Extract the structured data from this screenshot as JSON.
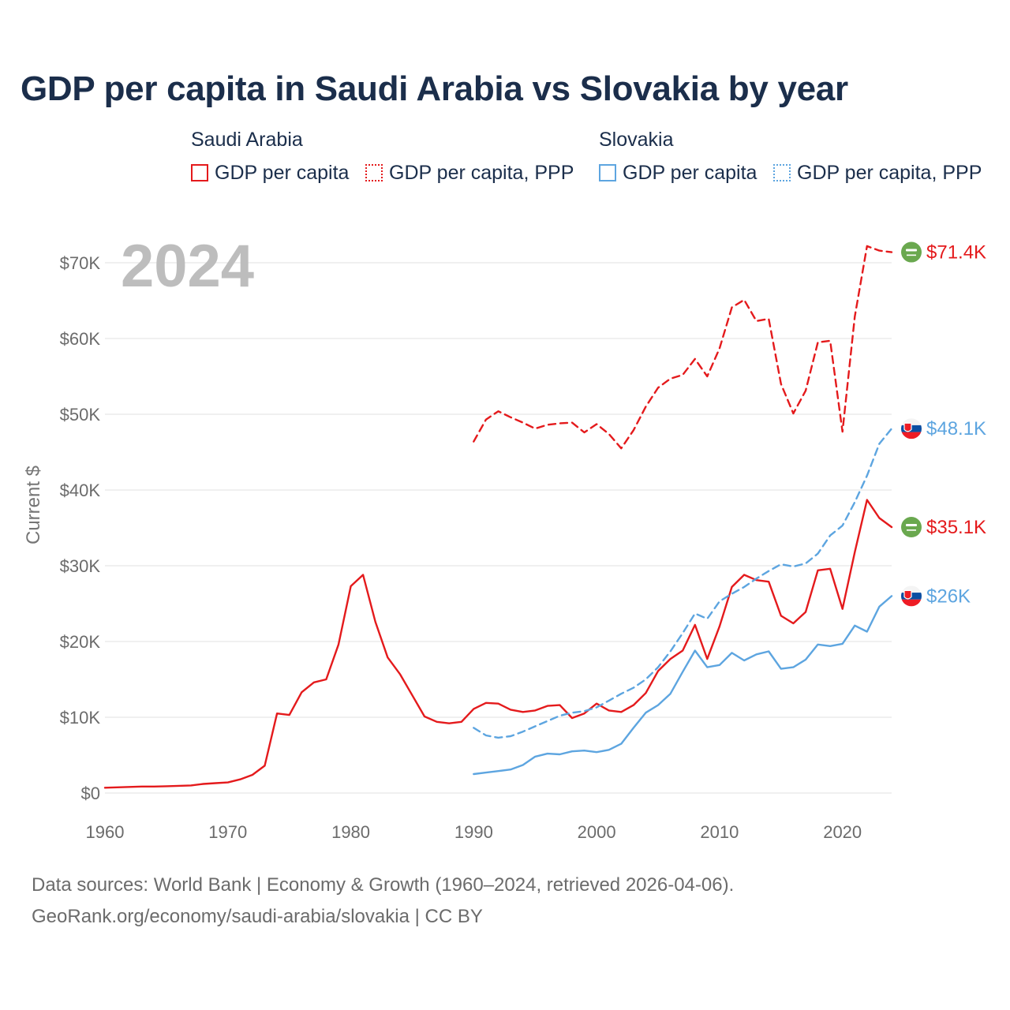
{
  "title": "GDP per capita in Saudi Arabia vs Slovakia by year",
  "legend": {
    "groups": [
      {
        "name": "Saudi Arabia",
        "color": "#e41a1c",
        "items": [
          {
            "label": "GDP per capita",
            "style": "solid"
          },
          {
            "label": "GDP per capita, PPP",
            "style": "dotted"
          }
        ]
      },
      {
        "name": "Slovakia",
        "color": "#5da5e0",
        "items": [
          {
            "label": "GDP per capita",
            "style": "solid"
          },
          {
            "label": "GDP per capita, PPP",
            "style": "dotted"
          }
        ]
      }
    ]
  },
  "footer": {
    "line1": "Data sources: World Bank | Economy & Growth (1960–2024, retrieved 2026-04-06).",
    "line2": "GeoRank.org/economy/saudi-arabia/slovakia | CC BY"
  },
  "chart_data": {
    "type": "line",
    "year_label": "2024",
    "ylabel": "Current $",
    "xlabel": "",
    "xlim": [
      1960,
      2024
    ],
    "ylim": [
      0,
      75000
    ],
    "x_ticks": [
      1960,
      1970,
      1980,
      1990,
      2000,
      2010,
      2020
    ],
    "x_tick_labels": [
      "1960",
      "1970",
      "1980",
      "1990",
      "2000",
      "2010",
      "2020"
    ],
    "y_ticks": [
      0,
      10000,
      20000,
      30000,
      40000,
      50000,
      60000,
      70000
    ],
    "y_tick_labels": [
      "$0",
      "$10K",
      "$20K",
      "$30K",
      "$40K",
      "$50K",
      "$60K",
      "$70K"
    ],
    "grid": true,
    "series": [
      {
        "name": "Saudi Arabia GDP per capita",
        "country": "Saudi Arabia",
        "color": "#e41a1c",
        "dash": "solid",
        "end_label": "$35.1K",
        "flag": "saudi-arabia",
        "x": [
          1960,
          1961,
          1962,
          1963,
          1964,
          1965,
          1966,
          1967,
          1968,
          1969,
          1970,
          1971,
          1972,
          1973,
          1974,
          1975,
          1976,
          1977,
          1978,
          1979,
          1980,
          1981,
          1982,
          1983,
          1984,
          1985,
          1986,
          1987,
          1988,
          1989,
          1990,
          1991,
          1992,
          1993,
          1994,
          1995,
          1996,
          1997,
          1998,
          1999,
          2000,
          2001,
          2002,
          2003,
          2004,
          2005,
          2006,
          2007,
          2008,
          2009,
          2010,
          2011,
          2012,
          2013,
          2014,
          2015,
          2016,
          2017,
          2018,
          2019,
          2020,
          2021,
          2022,
          2023,
          2024
        ],
        "values": [
          700,
          750,
          800,
          850,
          850,
          900,
          950,
          1000,
          1200,
          1300,
          1400,
          1800,
          2400,
          3600,
          10500,
          10300,
          13300,
          14600,
          15000,
          19600,
          27300,
          28800,
          22600,
          17900,
          15700,
          12900,
          10100,
          9400,
          9200,
          9400,
          11100,
          11900,
          11800,
          11000,
          10700,
          10900,
          11500,
          11600,
          9900,
          10500,
          11800,
          10900,
          10700,
          11600,
          13200,
          16100,
          17700,
          18800,
          22200,
          17700,
          22000,
          27200,
          28800,
          28100,
          27900,
          23400,
          22400,
          23900,
          29400,
          29600,
          24300,
          31800,
          38700,
          36300,
          35100
        ]
      },
      {
        "name": "Saudi Arabia GDP per capita, PPP",
        "country": "Saudi Arabia",
        "color": "#e41a1c",
        "dash": "dashed",
        "end_label": "$71.4K",
        "flag": "saudi-arabia",
        "x": [
          1990,
          1991,
          1992,
          1993,
          1994,
          1995,
          1996,
          1997,
          1998,
          1999,
          2000,
          2001,
          2002,
          2003,
          2004,
          2005,
          2006,
          2007,
          2008,
          2009,
          2010,
          2011,
          2012,
          2013,
          2014,
          2015,
          2016,
          2017,
          2018,
          2019,
          2020,
          2021,
          2022,
          2023,
          2024
        ],
        "values": [
          46400,
          49300,
          50400,
          49600,
          48900,
          48100,
          48600,
          48800,
          48900,
          47600,
          48700,
          47400,
          45500,
          47900,
          51000,
          53500,
          54700,
          55200,
          57300,
          55000,
          58700,
          64100,
          65100,
          62300,
          62600,
          54000,
          50100,
          53100,
          59500,
          59700,
          47700,
          62900,
          72200,
          71600,
          71400
        ]
      },
      {
        "name": "Slovakia GDP per capita",
        "country": "Slovakia",
        "color": "#5da5e0",
        "dash": "solid",
        "end_label": "$26K",
        "flag": "slovakia",
        "x": [
          1990,
          1991,
          1992,
          1993,
          1994,
          1995,
          1996,
          1997,
          1998,
          1999,
          2000,
          2001,
          2002,
          2003,
          2004,
          2005,
          2006,
          2007,
          2008,
          2009,
          2010,
          2011,
          2012,
          2013,
          2014,
          2015,
          2016,
          2017,
          2018,
          2019,
          2020,
          2021,
          2022,
          2023,
          2024
        ],
        "values": [
          2500,
          2700,
          2900,
          3100,
          3700,
          4800,
          5200,
          5100,
          5500,
          5600,
          5400,
          5700,
          6500,
          8600,
          10600,
          11600,
          13100,
          16000,
          18800,
          16600,
          16900,
          18500,
          17500,
          18300,
          18700,
          16400,
          16600,
          17600,
          19600,
          19400,
          19700,
          22100,
          21300,
          24600,
          26000
        ]
      },
      {
        "name": "Slovakia GDP per capita, PPP",
        "country": "Slovakia",
        "color": "#5da5e0",
        "dash": "dashed",
        "end_label": "$48.1K",
        "flag": "slovakia",
        "x": [
          1990,
          1991,
          1992,
          1993,
          1994,
          1995,
          1996,
          1997,
          1998,
          1999,
          2000,
          2001,
          2002,
          2003,
          2004,
          2005,
          2006,
          2007,
          2008,
          2009,
          2010,
          2011,
          2012,
          2013,
          2014,
          2015,
          2016,
          2017,
          2018,
          2019,
          2020,
          2021,
          2022,
          2023,
          2024
        ],
        "values": [
          8600,
          7600,
          7300,
          7500,
          8100,
          8800,
          9500,
          10200,
          10600,
          10800,
          11300,
          12200,
          13100,
          13900,
          15000,
          16600,
          18700,
          21100,
          23700,
          23000,
          25300,
          26300,
          27200,
          28300,
          29300,
          30200,
          29900,
          30300,
          31600,
          34000,
          35300,
          38400,
          41900,
          46100,
          48100
        ]
      }
    ]
  }
}
